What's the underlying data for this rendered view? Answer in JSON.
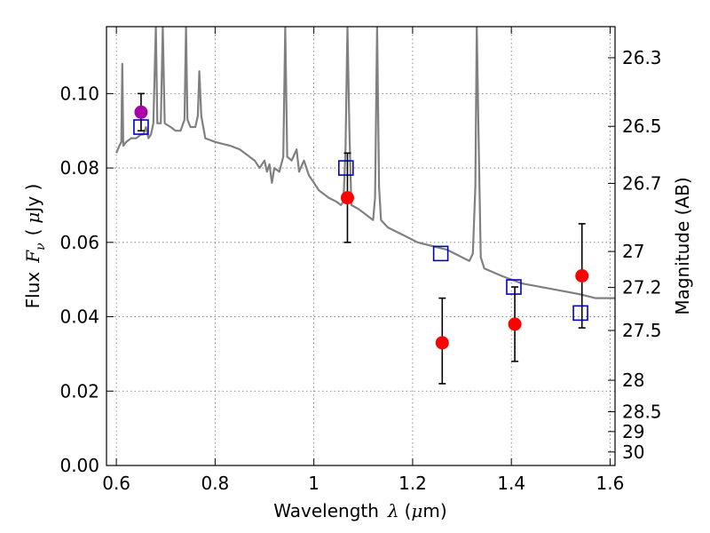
{
  "chart_data": {
    "type": "scatter",
    "xlabel": {
      "text": "Wavelength",
      "symbol": "λ",
      "unit_open": "(",
      "unit_mu": "μ",
      "unit_rest": "m)"
    },
    "ylabel": {
      "text": "Flux",
      "symbol": "F",
      "subscript": "ν",
      "unit_open": "(",
      "unit_mu": "μ",
      "unit_rest": "Jy )"
    },
    "y2label": "Magnitude (AB)",
    "xlim": [
      0.58,
      1.61
    ],
    "ylim": [
      0.0,
      0.118
    ],
    "grid": true,
    "x_ticks": [
      {
        "value": 0.6,
        "label": "0.6"
      },
      {
        "value": 0.8,
        "label": "0.8"
      },
      {
        "value": 1.0,
        "label": "1"
      },
      {
        "value": 1.2,
        "label": "1.2"
      },
      {
        "value": 1.4,
        "label": "1.4"
      },
      {
        "value": 1.6,
        "label": "1.6"
      }
    ],
    "y_ticks": [
      {
        "value": 0.0,
        "label": "0.00"
      },
      {
        "value": 0.02,
        "label": "0.02"
      },
      {
        "value": 0.04,
        "label": "0.04"
      },
      {
        "value": 0.06,
        "label": "0.06"
      },
      {
        "value": 0.08,
        "label": "0.08"
      },
      {
        "value": 0.1,
        "label": "0.10"
      }
    ],
    "mag_ticks": [
      "26.3",
      "26.5",
      "26.7",
      "27",
      "27.2",
      "27.5",
      "28",
      "28.5",
      "29",
      "30"
    ],
    "model_spectrum": {
      "color": "#808080",
      "points": [
        [
          0.6,
          0.084
        ],
        [
          0.606,
          0.086
        ],
        [
          0.61,
          0.087
        ],
        [
          0.612,
          0.108
        ],
        [
          0.614,
          0.086
        ],
        [
          0.62,
          0.087
        ],
        [
          0.63,
          0.088
        ],
        [
          0.64,
          0.088
        ],
        [
          0.65,
          0.089
        ],
        [
          0.655,
          0.089
        ],
        [
          0.66,
          0.091
        ],
        [
          0.665,
          0.088
        ],
        [
          0.67,
          0.089
        ],
        [
          0.675,
          0.092
        ],
        [
          0.68,
          0.118
        ],
        [
          0.683,
          0.092
        ],
        [
          0.69,
          0.092
        ],
        [
          0.694,
          0.118
        ],
        [
          0.698,
          0.092
        ],
        [
          0.71,
          0.091
        ],
        [
          0.72,
          0.09
        ],
        [
          0.73,
          0.09
        ],
        [
          0.738,
          0.093
        ],
        [
          0.741,
          0.118
        ],
        [
          0.744,
          0.093
        ],
        [
          0.75,
          0.091
        ],
        [
          0.76,
          0.091
        ],
        [
          0.765,
          0.094
        ],
        [
          0.768,
          0.106
        ],
        [
          0.772,
          0.094
        ],
        [
          0.78,
          0.088
        ],
        [
          0.8,
          0.087
        ],
        [
          0.83,
          0.086
        ],
        [
          0.85,
          0.085
        ],
        [
          0.87,
          0.083
        ],
        [
          0.88,
          0.082
        ],
        [
          0.89,
          0.08
        ],
        [
          0.9,
          0.082
        ],
        [
          0.905,
          0.079
        ],
        [
          0.91,
          0.081
        ],
        [
          0.915,
          0.076
        ],
        [
          0.92,
          0.08
        ],
        [
          0.93,
          0.079
        ],
        [
          0.938,
          0.083
        ],
        [
          0.942,
          0.118
        ],
        [
          0.946,
          0.083
        ],
        [
          0.955,
          0.082
        ],
        [
          0.965,
          0.085
        ],
        [
          0.97,
          0.079
        ],
        [
          0.98,
          0.082
        ],
        [
          0.99,
          0.078
        ],
        [
          1.0,
          0.076
        ],
        [
          1.01,
          0.074
        ],
        [
          1.02,
          0.073
        ],
        [
          1.03,
          0.072
        ],
        [
          1.045,
          0.071
        ],
        [
          1.055,
          0.07
        ],
        [
          1.06,
          0.071
        ],
        [
          1.064,
          0.085
        ],
        [
          1.068,
          0.118
        ],
        [
          1.072,
          0.09
        ],
        [
          1.076,
          0.07
        ],
        [
          1.09,
          0.069
        ],
        [
          1.1,
          0.068
        ],
        [
          1.11,
          0.067
        ],
        [
          1.12,
          0.066
        ],
        [
          1.124,
          0.072
        ],
        [
          1.128,
          0.118
        ],
        [
          1.132,
          0.075
        ],
        [
          1.136,
          0.066
        ],
        [
          1.15,
          0.064
        ],
        [
          1.18,
          0.062
        ],
        [
          1.21,
          0.06
        ],
        [
          1.24,
          0.059
        ],
        [
          1.27,
          0.058
        ],
        [
          1.3,
          0.056
        ],
        [
          1.315,
          0.055
        ],
        [
          1.322,
          0.057
        ],
        [
          1.327,
          0.075
        ],
        [
          1.33,
          0.118
        ],
        [
          1.334,
          0.085
        ],
        [
          1.338,
          0.056
        ],
        [
          1.345,
          0.053
        ],
        [
          1.38,
          0.051
        ],
        [
          1.42,
          0.049
        ],
        [
          1.46,
          0.048
        ],
        [
          1.5,
          0.047
        ],
        [
          1.54,
          0.046
        ],
        [
          1.57,
          0.045
        ],
        [
          1.6,
          0.045
        ],
        [
          1.61,
          0.045
        ]
      ]
    },
    "series": [
      {
        "marker": "square",
        "color": "#0000cc",
        "points": [
          {
            "x": 0.65,
            "y": 0.091
          },
          {
            "x": 1.065,
            "y": 0.08
          },
          {
            "x": 1.257,
            "y": 0.057
          },
          {
            "x": 1.405,
            "y": 0.048
          },
          {
            "x": 1.54,
            "y": 0.041
          }
        ]
      },
      {
        "marker": "circle",
        "color": "#ff0000",
        "points": [
          {
            "x": 1.068,
            "y": 0.072,
            "yerr": [
              0.06,
              0.084
            ]
          },
          {
            "x": 1.26,
            "y": 0.033,
            "yerr": [
              0.022,
              0.045
            ]
          },
          {
            "x": 1.407,
            "y": 0.038,
            "yerr": [
              0.028,
              0.048
            ]
          },
          {
            "x": 1.543,
            "y": 0.051,
            "yerr": [
              0.037,
              0.065
            ]
          }
        ]
      },
      {
        "marker": "circle",
        "color": "#aa00aa",
        "points": [
          {
            "x": 0.65,
            "y": 0.095,
            "yerr": [
              0.09,
              0.1
            ]
          }
        ]
      }
    ]
  }
}
